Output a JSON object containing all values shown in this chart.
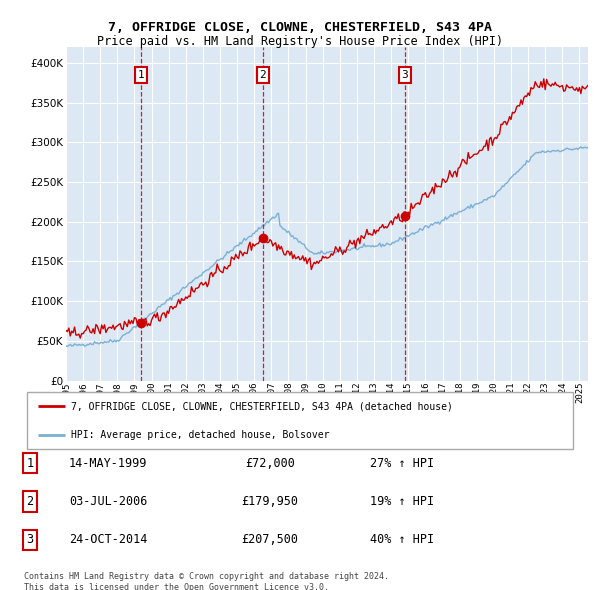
{
  "title_line1": "7, OFFRIDGE CLOSE, CLOWNE, CHESTERFIELD, S43 4PA",
  "title_line2": "Price paid vs. HM Land Registry's House Price Index (HPI)",
  "sale_prices": [
    72000,
    179950,
    207500
  ],
  "sale_labels": [
    "1",
    "2",
    "3"
  ],
  "sale_year_nums": [
    1999.37,
    2006.5,
    2014.81
  ],
  "legend_line1": "7, OFFRIDGE CLOSE, CLOWNE, CHESTERFIELD, S43 4PA (detached house)",
  "legend_line2": "HPI: Average price, detached house, Bolsover",
  "table_data": [
    [
      "1",
      "14-MAY-1999",
      "£72,000",
      "27% ↑ HPI"
    ],
    [
      "2",
      "03-JUL-2006",
      "£179,950",
      "19% ↑ HPI"
    ],
    [
      "3",
      "24-OCT-2014",
      "£207,500",
      "40% ↑ HPI"
    ]
  ],
  "footer": "Contains HM Land Registry data © Crown copyright and database right 2024.\nThis data is licensed under the Open Government Licence v3.0.",
  "price_color": "#cc0000",
  "hpi_color": "#7bafd4",
  "plot_bg_color": "#dce9f5",
  "ylim": [
    0,
    420000
  ],
  "yticks": [
    0,
    50000,
    100000,
    150000,
    200000,
    250000,
    300000,
    350000,
    400000
  ],
  "x_min": 1995,
  "x_max": 2025.5
}
